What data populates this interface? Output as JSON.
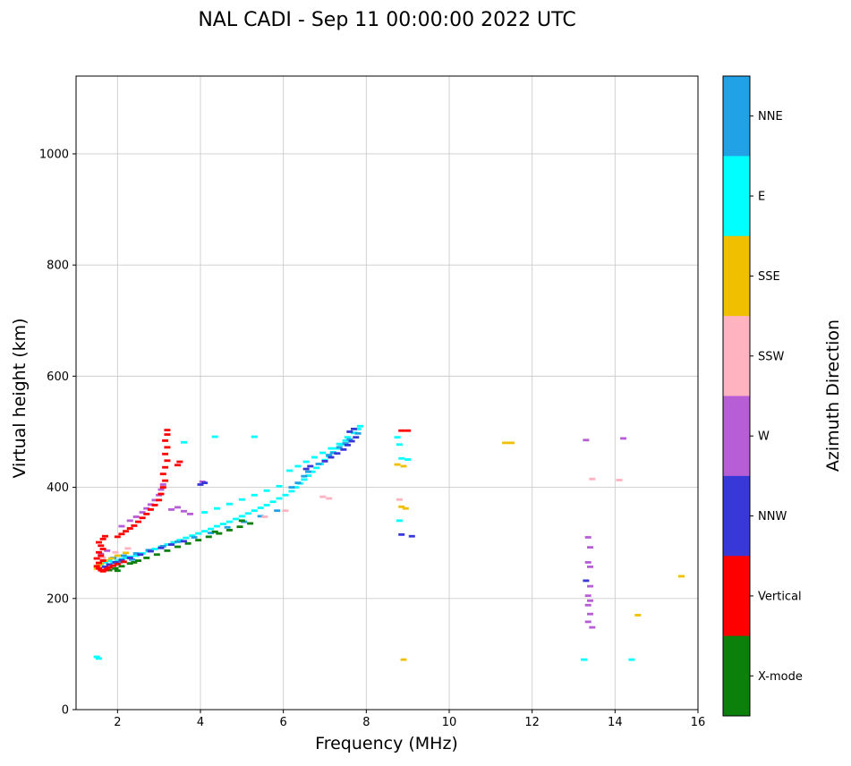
{
  "title": "NAL CADI - Sep 11 00:00:00 2022 UTC",
  "chart_data": {
    "type": "scatter",
    "title": "NAL CADI - Sep 11 00:00:00 2022 UTC",
    "xlabel": "Frequency (MHz)",
    "ylabel": "Virtual height (km)",
    "xlim": [
      1,
      16
    ],
    "ylim": [
      0,
      1140
    ],
    "xticks": [
      2,
      4,
      6,
      8,
      10,
      12,
      14,
      16
    ],
    "yticks": [
      0,
      200,
      400,
      600,
      800,
      1000
    ],
    "grid": true,
    "grid_color": "#cccccc",
    "marker": "horizontal-dash",
    "colorbar": {
      "label": "Azimuth Direction",
      "categories": [
        {
          "label": "NNE",
          "color": "#22a2e6"
        },
        {
          "label": "E",
          "color": "#00ffff"
        },
        {
          "label": "SSE",
          "color": "#f0c000"
        },
        {
          "label": "SSW",
          "color": "#ffb3c1"
        },
        {
          "label": "W",
          "color": "#b75ed6"
        },
        {
          "label": "NNW",
          "color": "#3838d8"
        },
        {
          "label": "Vertical",
          "color": "#ff0000"
        },
        {
          "label": "X-mode",
          "color": "#0b800b"
        }
      ]
    },
    "series": [
      {
        "name": "E",
        "points": [
          [
            1.5,
            95
          ],
          [
            1.55,
            92
          ],
          [
            1.6,
            262
          ],
          [
            1.7,
            265
          ],
          [
            1.8,
            268
          ],
          [
            1.9,
            264
          ],
          [
            2.0,
            268
          ],
          [
            2.1,
            271
          ],
          [
            2.2,
            273
          ],
          [
            2.3,
            275
          ],
          [
            2.45,
            277
          ],
          [
            2.6,
            281
          ],
          [
            2.75,
            285
          ],
          [
            2.9,
            289
          ],
          [
            3.05,
            293
          ],
          [
            3.2,
            297
          ],
          [
            3.35,
            301
          ],
          [
            3.5,
            305
          ],
          [
            3.65,
            309
          ],
          [
            3.8,
            313
          ],
          [
            3.95,
            317
          ],
          [
            4.1,
            321
          ],
          [
            4.25,
            325
          ],
          [
            4.4,
            330
          ],
          [
            4.55,
            334
          ],
          [
            4.7,
            338
          ],
          [
            4.85,
            343
          ],
          [
            5.0,
            348
          ],
          [
            5.15,
            353
          ],
          [
            5.3,
            358
          ],
          [
            5.45,
            363
          ],
          [
            5.6,
            368
          ],
          [
            5.75,
            374
          ],
          [
            5.9,
            380
          ],
          [
            6.05,
            386
          ],
          [
            6.2,
            393
          ],
          [
            6.3,
            400
          ],
          [
            6.4,
            407
          ],
          [
            6.5,
            414
          ],
          [
            6.6,
            421
          ],
          [
            6.7,
            428
          ],
          [
            6.8,
            435
          ],
          [
            6.9,
            442
          ],
          [
            7.0,
            449
          ],
          [
            7.1,
            456
          ],
          [
            7.2,
            463
          ],
          [
            7.3,
            470
          ],
          [
            7.4,
            477
          ],
          [
            7.5,
            484
          ],
          [
            4.1,
            355
          ],
          [
            4.4,
            362
          ],
          [
            4.7,
            370
          ],
          [
            5.0,
            378
          ],
          [
            5.3,
            386
          ],
          [
            5.6,
            394
          ],
          [
            5.9,
            402
          ],
          [
            6.15,
            430
          ],
          [
            6.35,
            438
          ],
          [
            6.55,
            446
          ],
          [
            6.75,
            454
          ],
          [
            6.95,
            462
          ],
          [
            7.15,
            470
          ],
          [
            7.35,
            478
          ],
          [
            7.55,
            490
          ],
          [
            7.7,
            498
          ],
          [
            7.8,
            505
          ],
          [
            7.85,
            510
          ],
          [
            3.6,
            481
          ],
          [
            4.35,
            491
          ],
          [
            5.3,
            491
          ],
          [
            8.75,
            490
          ],
          [
            8.8,
            477
          ],
          [
            8.85,
            452
          ],
          [
            9.0,
            450
          ],
          [
            8.8,
            340
          ],
          [
            13.25,
            90
          ],
          [
            14.4,
            90
          ]
        ]
      },
      {
        "name": "NNE",
        "points": [
          [
            1.7,
            268
          ],
          [
            1.9,
            273
          ],
          [
            2.05,
            265
          ],
          [
            2.15,
            277
          ],
          [
            2.35,
            270
          ],
          [
            2.45,
            281
          ],
          [
            2.75,
            287
          ],
          [
            3.1,
            294
          ],
          [
            3.45,
            302
          ],
          [
            3.85,
            310
          ],
          [
            4.25,
            318
          ],
          [
            4.65,
            328
          ],
          [
            5.05,
            338
          ],
          [
            5.45,
            348
          ],
          [
            5.85,
            358
          ],
          [
            6.2,
            400
          ],
          [
            6.35,
            408
          ],
          [
            6.5,
            420
          ],
          [
            6.6,
            428
          ],
          [
            6.85,
            442
          ],
          [
            7.1,
            458
          ],
          [
            7.2,
            462
          ],
          [
            7.35,
            472
          ],
          [
            7.5,
            479
          ],
          [
            7.6,
            486
          ],
          [
            7.8,
            497
          ]
        ]
      },
      {
        "name": "SSE",
        "points": [
          [
            1.5,
            254
          ],
          [
            1.55,
            259
          ],
          [
            1.6,
            263
          ],
          [
            1.7,
            268
          ],
          [
            1.85,
            272
          ],
          [
            2.0,
            277
          ],
          [
            2.2,
            282
          ],
          [
            8.75,
            441
          ],
          [
            8.9,
            438
          ],
          [
            8.85,
            365
          ],
          [
            8.95,
            362
          ],
          [
            8.9,
            90
          ],
          [
            11.35,
            480
          ],
          [
            11.5,
            480
          ],
          [
            14.55,
            170
          ],
          [
            15.6,
            240
          ]
        ]
      },
      {
        "name": "SSW",
        "points": [
          [
            1.65,
            273
          ],
          [
            1.95,
            283
          ],
          [
            2.25,
            290
          ],
          [
            5.55,
            347
          ],
          [
            6.05,
            358
          ],
          [
            6.95,
            383
          ],
          [
            7.1,
            380
          ],
          [
            8.8,
            378
          ],
          [
            13.45,
            415
          ],
          [
            14.1,
            413
          ]
        ]
      },
      {
        "name": "X-mode",
        "points": [
          [
            1.8,
            251
          ],
          [
            1.95,
            254
          ],
          [
            2.0,
            250
          ],
          [
            2.1,
            258
          ],
          [
            2.3,
            263
          ],
          [
            2.4,
            265
          ],
          [
            2.5,
            268
          ],
          [
            2.7,
            273
          ],
          [
            2.95,
            279
          ],
          [
            3.2,
            286
          ],
          [
            3.45,
            293
          ],
          [
            3.7,
            299
          ],
          [
            3.95,
            305
          ],
          [
            4.2,
            311
          ],
          [
            4.35,
            320
          ],
          [
            4.45,
            317
          ],
          [
            4.7,
            323
          ],
          [
            4.95,
            329
          ],
          [
            5.0,
            340
          ],
          [
            5.2,
            335
          ]
        ]
      },
      {
        "name": "W",
        "points": [
          [
            1.6,
            280
          ],
          [
            1.75,
            286
          ],
          [
            2.1,
            330
          ],
          [
            2.3,
            340
          ],
          [
            2.45,
            347
          ],
          [
            2.6,
            355
          ],
          [
            2.7,
            362
          ],
          [
            2.8,
            369
          ],
          [
            2.9,
            377
          ],
          [
            3.0,
            386
          ],
          [
            3.05,
            396
          ],
          [
            3.1,
            405
          ],
          [
            3.3,
            360
          ],
          [
            3.45,
            364
          ],
          [
            3.6,
            357
          ],
          [
            3.75,
            352
          ],
          [
            4.05,
            410
          ],
          [
            13.35,
            310
          ],
          [
            13.4,
            292
          ],
          [
            13.35,
            265
          ],
          [
            13.4,
            257
          ],
          [
            13.4,
            222
          ],
          [
            13.35,
            205
          ],
          [
            13.4,
            196
          ],
          [
            13.35,
            188
          ],
          [
            13.4,
            172
          ],
          [
            13.35,
            158
          ],
          [
            13.45,
            148
          ],
          [
            13.3,
            485
          ],
          [
            14.2,
            488
          ]
        ]
      },
      {
        "name": "NNW",
        "points": [
          [
            1.7,
            257
          ],
          [
            1.8,
            261
          ],
          [
            1.95,
            265
          ],
          [
            2.1,
            269
          ],
          [
            2.3,
            273
          ],
          [
            2.55,
            279
          ],
          [
            2.8,
            285
          ],
          [
            3.05,
            291
          ],
          [
            3.3,
            297
          ],
          [
            3.6,
            303
          ],
          [
            4.0,
            405
          ],
          [
            4.1,
            408
          ],
          [
            6.55,
            433
          ],
          [
            6.65,
            438
          ],
          [
            7.0,
            447
          ],
          [
            7.15,
            454
          ],
          [
            7.3,
            461
          ],
          [
            7.45,
            468
          ],
          [
            7.55,
            476
          ],
          [
            7.65,
            483
          ],
          [
            7.75,
            490
          ],
          [
            7.6,
            500
          ],
          [
            7.7,
            505
          ],
          [
            8.85,
            315
          ],
          [
            9.1,
            312
          ],
          [
            13.3,
            232
          ]
        ]
      },
      {
        "name": "Vertical",
        "points": [
          [
            1.5,
            258
          ],
          [
            1.55,
            254
          ],
          [
            1.6,
            251
          ],
          [
            1.65,
            249
          ],
          [
            1.7,
            251
          ],
          [
            1.75,
            253
          ],
          [
            1.8,
            256
          ],
          [
            1.9,
            259
          ],
          [
            1.55,
            264
          ],
          [
            1.65,
            268
          ],
          [
            1.5,
            272
          ],
          [
            1.6,
            277
          ],
          [
            1.55,
            283
          ],
          [
            1.65,
            289
          ],
          [
            1.6,
            295
          ],
          [
            1.55,
            301
          ],
          [
            1.65,
            307
          ],
          [
            1.7,
            312
          ],
          [
            2.0,
            262
          ],
          [
            2.15,
            266
          ],
          [
            2.0,
            311
          ],
          [
            2.1,
            316
          ],
          [
            2.2,
            321
          ],
          [
            2.3,
            326
          ],
          [
            2.4,
            331
          ],
          [
            2.5,
            338
          ],
          [
            2.6,
            345
          ],
          [
            2.7,
            352
          ],
          [
            2.8,
            360
          ],
          [
            2.9,
            368
          ],
          [
            3.0,
            377
          ],
          [
            3.05,
            388
          ],
          [
            3.1,
            400
          ],
          [
            3.15,
            412
          ],
          [
            3.1,
            424
          ],
          [
            3.15,
            436
          ],
          [
            3.2,
            448
          ],
          [
            3.15,
            460
          ],
          [
            3.2,
            472
          ],
          [
            3.15,
            484
          ],
          [
            3.2,
            495
          ],
          [
            3.2,
            503
          ],
          [
            3.45,
            440
          ],
          [
            3.5,
            446
          ],
          [
            8.85,
            502
          ],
          [
            9.0,
            502
          ]
        ]
      }
    ]
  }
}
